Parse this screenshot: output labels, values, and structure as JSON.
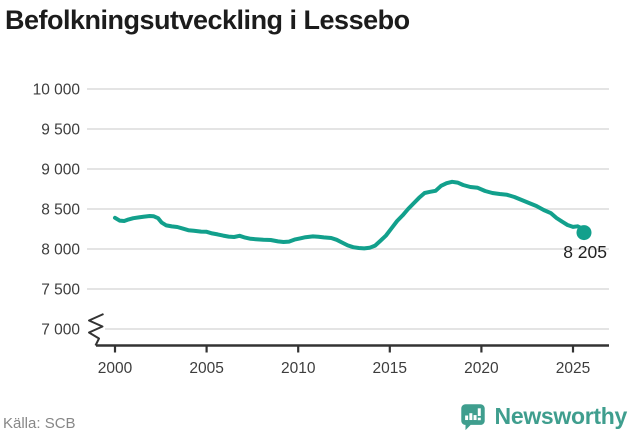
{
  "title": "Befolkningsutveckling i Lessebo",
  "source": "Källa: SCB",
  "branding": {
    "logo_text": "Newsworthy",
    "logo_icon": "bar-chart-speech-bubble-icon",
    "brand_color": "#3f9e8e"
  },
  "colors": {
    "line": "#12a08c",
    "end_dot": "#12a08c",
    "title_text": "#1c1c1c",
    "axis_text": "#3d3d3d",
    "axis_line": "#333333",
    "grid": "#dcdcdc",
    "end_label_text": "#222222",
    "source_text": "#878787"
  },
  "chart_data": {
    "type": "line",
    "title": "Befolkningsutveckling i Lessebo",
    "xlabel": "",
    "ylabel": "",
    "grid": "horizontal",
    "legend": "none",
    "axis_break_at_bottom": true,
    "ylim": [
      7000,
      10000
    ],
    "xlim": [
      2000,
      2027
    ],
    "yticks": [
      7000,
      7500,
      8000,
      8500,
      9000,
      9500,
      10000
    ],
    "ytick_labels": [
      "7 000",
      "7 500",
      "8 000",
      "8 500",
      "9 000",
      "9 500",
      "10 000"
    ],
    "xticks": [
      2000,
      2005,
      2010,
      2015,
      2020,
      2025
    ],
    "xtick_labels": [
      "2000",
      "2005",
      "2010",
      "2015",
      "2020",
      "2025"
    ],
    "series_name": "Befolkning i Lessebo",
    "x": [
      2000.0,
      2000.25,
      2000.5,
      2000.75,
      2001.0,
      2001.3,
      2001.6,
      2001.9,
      2002.1,
      2002.35,
      2002.55,
      2002.8,
      2003.1,
      2003.4,
      2003.7,
      2004.0,
      2004.3,
      2004.7,
      2005.0,
      2005.3,
      2005.6,
      2005.9,
      2006.2,
      2006.5,
      2006.8,
      2007.1,
      2007.4,
      2007.8,
      2008.1,
      2008.5,
      2008.9,
      2009.2,
      2009.5,
      2009.8,
      2010.1,
      2010.4,
      2010.8,
      2011.1,
      2011.4,
      2011.8,
      2012.1,
      2012.4,
      2012.7,
      2013.0,
      2013.3,
      2013.6,
      2013.9,
      2014.2,
      2014.5,
      2014.8,
      2015.1,
      2015.4,
      2015.7,
      2016.0,
      2016.3,
      2016.6,
      2016.9,
      2017.2,
      2017.5,
      2017.8,
      2018.1,
      2018.4,
      2018.7,
      2019.0,
      2019.4,
      2019.8,
      2020.2,
      2020.6,
      2021.0,
      2021.4,
      2021.8,
      2022.2,
      2022.6,
      2023.0,
      2023.4,
      2023.8,
      2024.1,
      2024.4,
      2024.7,
      2025.0,
      2025.25,
      2025.45,
      2025.6
    ],
    "values": [
      8390,
      8355,
      8350,
      8370,
      8385,
      8395,
      8405,
      8412,
      8410,
      8385,
      8330,
      8295,
      8282,
      8275,
      8255,
      8235,
      8228,
      8218,
      8215,
      8195,
      8182,
      8168,
      8155,
      8150,
      8165,
      8142,
      8128,
      8120,
      8115,
      8112,
      8095,
      8088,
      8092,
      8118,
      8132,
      8148,
      8158,
      8152,
      8145,
      8138,
      8115,
      8080,
      8045,
      8022,
      8012,
      8008,
      8015,
      8042,
      8105,
      8170,
      8260,
      8350,
      8420,
      8500,
      8570,
      8640,
      8700,
      8715,
      8728,
      8790,
      8822,
      8840,
      8830,
      8800,
      8775,
      8765,
      8725,
      8700,
      8688,
      8678,
      8650,
      8612,
      8575,
      8537,
      8487,
      8448,
      8388,
      8342,
      8300,
      8276,
      8284,
      8262,
      8205
    ],
    "end_value": 8205,
    "end_label": "8 205"
  }
}
